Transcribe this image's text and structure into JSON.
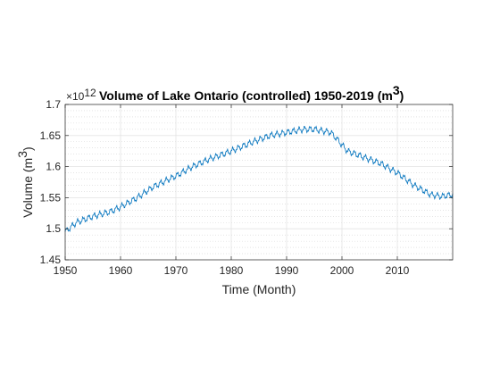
{
  "chart_data": {
    "type": "line",
    "title_main": "Volume of Lake Ontario (controlled) 1950-2019 (m",
    "title_sup": "3",
    "title_end": ")",
    "xlabel": "Time (Month)",
    "ylabel_main": "Volume (m",
    "ylabel_sup": "3",
    "ylabel_end": ")",
    "y_exponent_base": "×10",
    "y_exponent_power": "12",
    "xlim": [
      1950,
      2020
    ],
    "ylim": [
      1.45,
      1.7
    ],
    "x_ticks": [
      1950,
      1960,
      1970,
      1980,
      1990,
      2000,
      2010
    ],
    "x_tick_labels": [
      "1950",
      "1960",
      "1970",
      "1980",
      "1990",
      "2000",
      "2010"
    ],
    "y_ticks": [
      1.45,
      1.5,
      1.55,
      1.6,
      1.65,
      1.7
    ],
    "y_tick_labels": [
      "1.45",
      "1.5",
      "1.55",
      "1.6",
      "1.65",
      "1.7"
    ],
    "grid": true,
    "minor_grid": true,
    "line_color": "#0072BD",
    "trend": {
      "x": [
        1950,
        1952,
        1955,
        1958,
        1960,
        1963,
        1966,
        1970,
        1973,
        1976,
        1980,
        1984,
        1987,
        1990,
        1993,
        1995,
        1998,
        2001,
        2004,
        2007,
        2010,
        2013,
        2016,
        2018,
        2020
      ],
      "y": [
        1.495,
        1.51,
        1.52,
        1.527,
        1.535,
        1.55,
        1.568,
        1.585,
        1.6,
        1.612,
        1.625,
        1.64,
        1.65,
        1.655,
        1.66,
        1.66,
        1.655,
        1.625,
        1.615,
        1.605,
        1.59,
        1.57,
        1.555,
        1.552,
        1.555
      ]
    },
    "seasonal_amplitude": 0.005
  }
}
